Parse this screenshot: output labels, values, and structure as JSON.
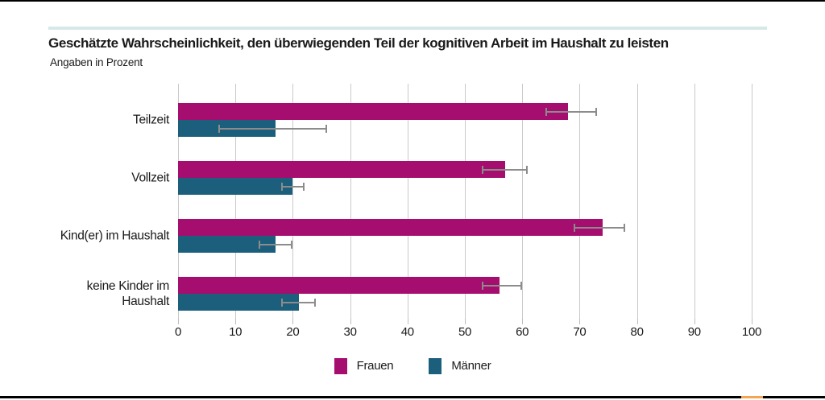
{
  "header": {
    "title": "Geschätzte Wahrscheinlichkeit, den überwiegenden Teil der kognitiven Arbeit im Haushalt zu leisten",
    "subtitle": "Angaben in Prozent"
  },
  "chart_data": {
    "type": "bar",
    "orientation": "horizontal",
    "title": "Geschätzte Wahrscheinlichkeit, den überwiegenden Teil der kognitiven Arbeit im Haushalt zu leisten",
    "subtitle": "Angaben in Prozent",
    "categories": [
      "Teilzeit",
      "Vollzeit",
      "Kind(er) im Haushalt",
      "keine Kinder im\nHaushalt"
    ],
    "series": [
      {
        "name": "Frauen",
        "color": "#A50D6E",
        "values": [
          68,
          57,
          74,
          56
        ],
        "error_low": [
          64,
          53,
          69,
          53
        ],
        "error_high": [
          73,
          61,
          78,
          60
        ]
      },
      {
        "name": "Männer",
        "color": "#1C5F7D",
        "values": [
          17,
          20,
          17,
          21
        ],
        "error_low": [
          7,
          18,
          14,
          18
        ],
        "error_high": [
          26,
          22,
          20,
          24
        ]
      }
    ],
    "xlim": [
      0,
      100
    ],
    "x_ticks": [
      0,
      10,
      20,
      30,
      40,
      50,
      60,
      70,
      80,
      90,
      100
    ],
    "grid": true,
    "legend_position": "bottom",
    "gridline_color": "#C9C9C9",
    "tick_color": "#BDBDBD",
    "error_bar_color": "#8C8C8C"
  },
  "decor": {
    "accent_rule_color": "#D6E8E7",
    "edge_color": "#000000",
    "bottom_marker_color": "#F2A74E"
  }
}
